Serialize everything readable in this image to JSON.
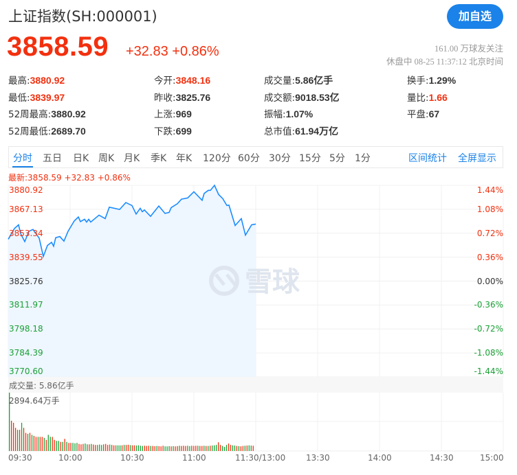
{
  "header": {
    "title": "上证指数(SH:000001)",
    "add_button": "加自选",
    "price": "3858.59",
    "change": "+32.83 +0.86%",
    "followers": "161.00 万球友关注",
    "status": "休盘中 08-25 11:37:12 北京时间"
  },
  "quotes": [
    {
      "label": "最高:",
      "value": "3880.92",
      "color": "red"
    },
    {
      "label": "今开:",
      "value": "3848.16",
      "color": "red"
    },
    {
      "label": "成交量:",
      "value": "5.86亿手",
      "color": ""
    },
    {
      "label": "换手:",
      "value": "1.29%",
      "color": ""
    },
    {
      "label": "最低:",
      "value": "3839.97",
      "color": "red"
    },
    {
      "label": "昨收:",
      "value": "3825.76",
      "color": ""
    },
    {
      "label": "成交额:",
      "value": "9018.53亿",
      "color": ""
    },
    {
      "label": "量比:",
      "value": "1.66",
      "color": "red"
    },
    {
      "label": "52周最高:",
      "value": "3880.92",
      "color": ""
    },
    {
      "label": "上涨:",
      "value": "969",
      "color": ""
    },
    {
      "label": "振幅:",
      "value": "1.07%",
      "color": ""
    },
    {
      "label": "平盘:",
      "value": "67",
      "color": ""
    },
    {
      "label": "52周最低:",
      "value": "2689.70",
      "color": ""
    },
    {
      "label": "下跌:",
      "value": "699",
      "color": ""
    },
    {
      "label": "总市值:",
      "value": "61.94万亿",
      "color": ""
    }
  ],
  "tabs": [
    "分时",
    "五日",
    "日K",
    "周K",
    "月K",
    "季K",
    "年K",
    "120分",
    "60分",
    "30分",
    "15分",
    "5分",
    "1分"
  ],
  "active_tab": "分时",
  "right_links": [
    "区间统计",
    "全屏显示"
  ],
  "watermark": "雪球",
  "colors": {
    "up": "#f2300f",
    "down": "#1aa035",
    "line": "#1a8cff",
    "fill": "#eef6ff",
    "accent": "#1a82e8"
  },
  "chart_data": {
    "type": "line",
    "latest_label": "最新:3858.59 +32.83 +0.86%",
    "prev_close": 3825.76,
    "ylim": [
      3770.6,
      3880.92
    ],
    "y_ticks": [
      "3880.92",
      "3867.13",
      "3853.34",
      "3839.55",
      "3825.76",
      "3811.97",
      "3798.18",
      "3784.39",
      "3770.60"
    ],
    "pct_ticks": [
      "1.44%",
      "1.08%",
      "0.72%",
      "0.36%",
      "0.00%",
      "-0.36%",
      "-0.72%",
      "-1.08%",
      "-1.44%"
    ],
    "x_ticks": [
      "09:30",
      "10:00",
      "10:30",
      "11:00",
      "11:30/13:00",
      "13:30",
      "14:00",
      "14:30",
      "15:00"
    ],
    "grid": true,
    "series": [
      {
        "x": [
          "09:30",
          "09:33",
          "09:35",
          "09:36",
          "09:38",
          "09:40",
          "09:42",
          "09:45",
          "09:47",
          "09:49",
          "09:51",
          "09:52",
          "09:53",
          "09:55",
          "09:57",
          "09:59",
          "10:02",
          "10:04",
          "10:05",
          "10:07",
          "10:08",
          "10:09",
          "10:10",
          "10:14",
          "10:17",
          "10:19",
          "10:24",
          "10:27",
          "10:30",
          "10:32",
          "10:34",
          "10:35",
          "10:36",
          "10:39",
          "10:43",
          "10:46",
          "10:48",
          "10:49",
          "10:52",
          "10:54",
          "10:57",
          "11:00",
          "11:04",
          "11:05",
          "11:07",
          "11:08",
          "11:10",
          "11:12",
          "11:14",
          "11:16",
          "11:17",
          "11:20",
          "11:23",
          "11:25",
          "11:28",
          "11:30"
        ],
        "y": [
          3849.85,
          3856.04,
          3858.18,
          3853.14,
          3848.5,
          3854.45,
          3855.52,
          3850.49,
          3839.97,
          3846.28,
          3848.1,
          3845.88,
          3850.76,
          3851.44,
          3848.78,
          3854.45,
          3860.41,
          3862.67,
          3860.01,
          3861.36,
          3859.77,
          3861.36,
          3859.77,
          3863.74,
          3861.75,
          3868.34,
          3867.03,
          3871.0,
          3869.29,
          3864.37,
          3867.71,
          3865.72,
          3866.75,
          3863.06,
          3869.02,
          3864.77,
          3865.33,
          3868.1,
          3870.33,
          3872.98,
          3873.66,
          3877.23,
          3872.31,
          3876.28,
          3878.02,
          3878.02,
          3880.92,
          3875.64,
          3873.26,
          3869.29,
          3869.53,
          3857.79,
          3861.75,
          3852.23,
          3858.18,
          3858.59
        ]
      }
    ],
    "volume": {
      "header": "成交量: 5.86亿手",
      "max_label": "2894.64万手",
      "max": 2894.64,
      "unit": "万手",
      "values": [
        2894.64,
        1500,
        1400,
        1150,
        1050,
        1050,
        1400,
        1150,
        900,
        850,
        900,
        800,
        750,
        700,
        700,
        700,
        700,
        650,
        550,
        800,
        700,
        700,
        550,
        500,
        500,
        450,
        450,
        600,
        450,
        400,
        400,
        400,
        380,
        400,
        350,
        330,
        350,
        370,
        330,
        330,
        350,
        320,
        300,
        300,
        320,
        300,
        330,
        350,
        300,
        320,
        300,
        280,
        280,
        280,
        280,
        280,
        300,
        300,
        310,
        290,
        280,
        280,
        270,
        280,
        260,
        250,
        260,
        250,
        260,
        250,
        250,
        240,
        250,
        240,
        230,
        260,
        230,
        230,
        240,
        230,
        240,
        230,
        240,
        260,
        250,
        260,
        250,
        260,
        240,
        260,
        250,
        260,
        260,
        250,
        250,
        260,
        250,
        250,
        260,
        270,
        280,
        300,
        430,
        300,
        250,
        200,
        300,
        370,
        300,
        280,
        270,
        250,
        240,
        230,
        250,
        260,
        270,
        280,
        270,
        260
      ],
      "direction": "grrrgrgrrgrgrrgrrgrggrrggrgrgrrgggrrrggrgrrgggrrrgrrgggrgrrgrrggggrrrgrrgrrrgggrgrrgrrrggrrrgrrgrgrgggrrgggrrggrgrrgrggrr"
    }
  }
}
